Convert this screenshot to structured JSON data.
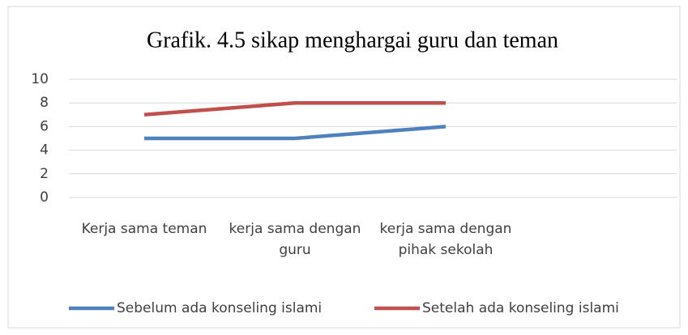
{
  "chart_data": {
    "type": "line",
    "title": "Grafik. 4.5 sikap menghargai guru dan teman",
    "categories": [
      "Kerja sama teman",
      "kerja sama dengan guru",
      "kerja sama dengan pihak sekolah",
      null
    ],
    "series": [
      {
        "name": "Sebelum ada konseling islami",
        "color": "#4f81bd",
        "values": [
          5,
          5,
          6,
          null
        ]
      },
      {
        "name": "Setelah ada konseling islami",
        "color": "#c0504d",
        "values": [
          7,
          8,
          8,
          null
        ]
      }
    ],
    "ylim": [
      0,
      10
    ],
    "yticks": [
      0,
      2,
      4,
      6,
      8,
      10
    ],
    "grid": true,
    "legend": "bottom"
  }
}
